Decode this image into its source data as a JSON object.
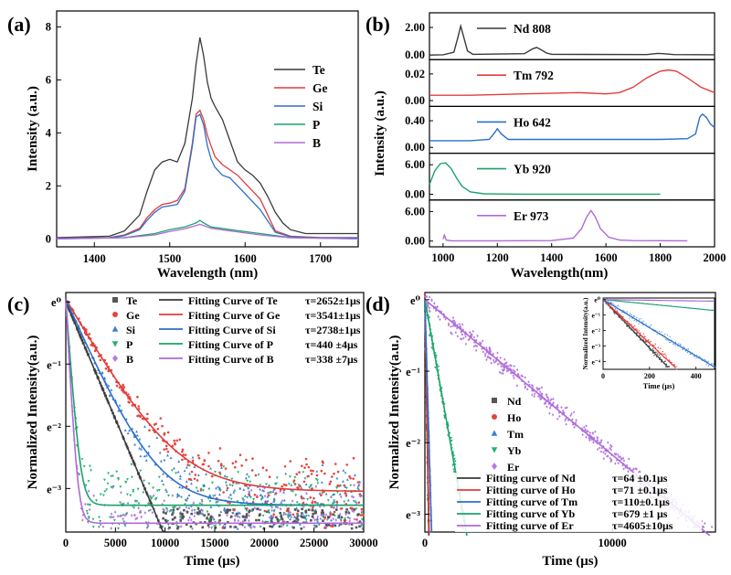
{
  "figure": {
    "panel_labels": [
      "(a)",
      "(b)",
      "(c)",
      "(d)"
    ]
  },
  "chart_data": [
    {
      "panel": "(a)",
      "type": "line",
      "xlabel": "Wavelength (nm)",
      "ylabel": "Intensity (a.u.)",
      "xlim": [
        1350,
        1750
      ],
      "ylim": [
        -0.3,
        8.6
      ],
      "xticks": [
        1400,
        1500,
        1600,
        1700
      ],
      "xtick_labels": [
        "1400",
        "1500",
        "1600",
        "1700"
      ],
      "yticks": [
        0,
        2,
        4,
        6,
        8
      ],
      "ytick_labels": [
        "0",
        "2",
        "4",
        "6",
        "8"
      ],
      "legend_position": "right",
      "series": [
        {
          "name": "Te",
          "color": "#3a3a3a",
          "x": [
            1350,
            1420,
            1440,
            1460,
            1470,
            1480,
            1490,
            1500,
            1510,
            1520,
            1530,
            1535,
            1540,
            1545,
            1550,
            1555,
            1560,
            1570,
            1580,
            1590,
            1600,
            1610,
            1620,
            1630,
            1640,
            1650,
            1660,
            1680,
            1700,
            1750
          ],
          "y": [
            0.05,
            0.1,
            0.3,
            0.9,
            1.8,
            2.6,
            2.9,
            3.0,
            2.9,
            3.6,
            5.3,
            6.6,
            7.6,
            6.9,
            5.9,
            5.3,
            5.0,
            4.5,
            3.7,
            2.9,
            2.6,
            2.4,
            2.1,
            1.6,
            1.0,
            0.6,
            0.35,
            0.2,
            0.2,
            0.2
          ]
        },
        {
          "name": "Ge",
          "color": "#e03c3c",
          "x": [
            1350,
            1420,
            1440,
            1460,
            1470,
            1480,
            1490,
            1500,
            1510,
            1520,
            1530,
            1535,
            1540,
            1545,
            1550,
            1555,
            1560,
            1570,
            1580,
            1590,
            1600,
            1610,
            1620,
            1630,
            1640,
            1660,
            1700,
            1750
          ],
          "y": [
            0.03,
            0.05,
            0.15,
            0.4,
            0.8,
            1.1,
            1.3,
            1.35,
            1.45,
            1.9,
            3.6,
            4.7,
            4.85,
            4.5,
            3.9,
            3.5,
            3.1,
            2.8,
            2.6,
            2.4,
            2.1,
            1.8,
            1.5,
            0.9,
            0.3,
            0.1,
            0.05,
            0.05
          ]
        },
        {
          "name": "Si",
          "color": "#2c6fc9",
          "x": [
            1350,
            1420,
            1440,
            1460,
            1470,
            1480,
            1490,
            1500,
            1510,
            1520,
            1530,
            1535,
            1540,
            1545,
            1550,
            1555,
            1560,
            1570,
            1580,
            1590,
            1600,
            1610,
            1620,
            1640,
            1660,
            1700,
            1750
          ],
          "y": [
            0.02,
            0.04,
            0.12,
            0.35,
            0.7,
            1.0,
            1.2,
            1.25,
            1.3,
            1.8,
            3.5,
            4.6,
            4.7,
            4.3,
            3.5,
            3.0,
            2.7,
            2.4,
            2.3,
            2.0,
            1.7,
            1.4,
            1.1,
            0.25,
            0.08,
            0.04,
            0.04
          ]
        },
        {
          "name": "P",
          "color": "#1aa36a",
          "x": [
            1350,
            1440,
            1480,
            1500,
            1520,
            1535,
            1540,
            1545,
            1555,
            1580,
            1620,
            1660,
            1750
          ],
          "y": [
            0.0,
            0.05,
            0.2,
            0.35,
            0.45,
            0.6,
            0.7,
            0.6,
            0.45,
            0.35,
            0.2,
            0.05,
            0.0
          ]
        },
        {
          "name": "B",
          "color": "#b06ad8",
          "x": [
            1350,
            1440,
            1480,
            1500,
            1520,
            1535,
            1540,
            1545,
            1555,
            1580,
            1620,
            1660,
            1750
          ],
          "y": [
            0.0,
            0.04,
            0.15,
            0.28,
            0.38,
            0.5,
            0.55,
            0.5,
            0.4,
            0.3,
            0.15,
            0.04,
            0.0
          ]
        }
      ]
    },
    {
      "panel": "(b)",
      "type": "line",
      "xlabel": "Wavelength(nm)",
      "ylabel": "Intensity (a.u.)",
      "xlim": [
        950,
        2000
      ],
      "xticks": [
        1000,
        1200,
        1400,
        1600,
        1800,
        2000
      ],
      "xtick_labels": [
        "1000",
        "1200",
        "1400",
        "1600",
        "1800",
        "2000"
      ],
      "subplots": [
        {
          "name": "Nd 808",
          "color": "#3a3a3a",
          "ylim": [
            -0.2,
            2.8
          ],
          "yticks": [
            0,
            2
          ],
          "ytick_labels": [
            "0.00",
            "2.00"
          ],
          "x": [
            950,
            1000,
            1040,
            1055,
            1065,
            1075,
            1090,
            1110,
            1300,
            1330,
            1345,
            1360,
            1380,
            1400,
            1750,
            1790,
            1810,
            1850,
            2000
          ],
          "y": [
            0,
            0.02,
            0.2,
            1.3,
            2.1,
            1.4,
            0.3,
            0.05,
            0.1,
            0.45,
            0.55,
            0.4,
            0.15,
            0.05,
            0.03,
            0.12,
            0.1,
            0.03,
            0.02
          ]
        },
        {
          "name": "Tm 792",
          "color": "#e03c3c",
          "ylim": [
            -0.003,
            0.028
          ],
          "yticks": [
            0,
            0.02
          ],
          "ytick_labels": [
            "0.00",
            "0.02"
          ],
          "x": [
            950,
            1100,
            1300,
            1500,
            1600,
            1650,
            1700,
            1750,
            1800,
            1830,
            1860,
            1900,
            1950,
            2000
          ],
          "y": [
            0.004,
            0.004,
            0.005,
            0.006,
            0.005,
            0.006,
            0.01,
            0.017,
            0.022,
            0.023,
            0.022,
            0.017,
            0.01,
            0.006
          ]
        },
        {
          "name": "Ho 642",
          "color": "#2c6fc9",
          "ylim": [
            -0.06,
            0.56
          ],
          "yticks": [
            0,
            0.4
          ],
          "ytick_labels": [
            "0.00",
            "0.40"
          ],
          "x": [
            950,
            1100,
            1170,
            1190,
            1200,
            1215,
            1240,
            1400,
            1600,
            1800,
            1900,
            1930,
            1945,
            1955,
            1970,
            1985,
            2000
          ],
          "y": [
            0.1,
            0.1,
            0.12,
            0.22,
            0.28,
            0.2,
            0.12,
            0.12,
            0.12,
            0.12,
            0.13,
            0.2,
            0.45,
            0.5,
            0.45,
            0.35,
            0.3
          ]
        },
        {
          "name": "Yb 920",
          "color": "#1aa36a",
          "ylim": [
            -0.8,
            7.6
          ],
          "yticks": [
            0,
            6
          ],
          "ytick_labels": [
            "0.00",
            "6.00"
          ],
          "x": [
            950,
            970,
            990,
            1010,
            1030,
            1050,
            1070,
            1100,
            1150,
            1200,
            1300,
            1500,
            1800
          ],
          "y": [
            2.0,
            4.8,
            6.2,
            6.4,
            5.2,
            3.3,
            1.6,
            0.5,
            0.1,
            0.05,
            0.02,
            0.02,
            0.02
          ]
        },
        {
          "name": "Er 973",
          "color": "#b06ad8",
          "ylim": [
            -0.8,
            7.6
          ],
          "yticks": [
            0,
            6
          ],
          "ytick_labels": [
            "0.00",
            "6.00"
          ],
          "x": [
            1000,
            1005,
            1012,
            1030,
            1200,
            1400,
            1480,
            1510,
            1530,
            1545,
            1560,
            1580,
            1610,
            1650,
            1700,
            1900
          ],
          "y": [
            0.4,
            1.2,
            0.2,
            0.05,
            0.05,
            0.1,
            0.6,
            2.5,
            5.0,
            6.2,
            5.0,
            2.5,
            0.8,
            0.2,
            0.1,
            0.05
          ]
        }
      ]
    },
    {
      "panel": "(c)",
      "type": "scatter",
      "xlabel": "Time (μs)",
      "ylabel": "Normalized Intensity(a.u.)",
      "xlim": [
        0,
        30000
      ],
      "ylim_log_e": [
        -3.7,
        0.15
      ],
      "xticks": [
        0,
        5000,
        10000,
        15000,
        20000,
        25000,
        30000
      ],
      "xtick_labels": [
        "0",
        "5000",
        "10000",
        "15000",
        "20000",
        "25000",
        "30000"
      ],
      "yticks_e": [
        0,
        -1,
        -2,
        -3
      ],
      "ytick_labels": [
        "e⁰",
        "e⁻¹",
        "e⁻²",
        "e⁻³"
      ],
      "series": [
        {
          "name": "Te",
          "marker": "square",
          "color": "#555555",
          "tau": 2652,
          "floor": 0.0
        },
        {
          "name": "Ge",
          "marker": "circle",
          "color": "#e8443a",
          "tau": 3541,
          "floor": 0.05
        },
        {
          "name": "Si",
          "marker": "triangle",
          "color": "#3b7fd6",
          "tau": 2738,
          "floor": 0.04
        },
        {
          "name": "P",
          "marker": "triangle-down",
          "color": "#26b070",
          "tau": 440,
          "floor": 0.04
        },
        {
          "name": "B",
          "marker": "diamond",
          "color": "#b47be0",
          "tau": 338,
          "floor": 0.03
        }
      ],
      "fit_legend": [
        {
          "name": "Fitting Curve of Te",
          "value": "τ=2652±1μs",
          "color": "#3a3a3a"
        },
        {
          "name": "Fitting Curve of Ge",
          "value": "τ=3541±1μs",
          "color": "#e03c3c"
        },
        {
          "name": "Fitting Curve of Si",
          "value": "τ=2738±1μs",
          "color": "#2c6fc9"
        },
        {
          "name": "Fitting Curve of P",
          "value": "τ=440  ±4μs",
          "color": "#1aa36a"
        },
        {
          "name": "Fitting Curve of B",
          "value": "τ=338  ±7μs",
          "color": "#b06ad8"
        }
      ]
    },
    {
      "panel": "(d)",
      "type": "scatter",
      "xlabel": "Time (μs)",
      "ylabel": "Normalized Intensity(a.u.)",
      "xlim": [
        0,
        15500
      ],
      "ylim_log_e": [
        -3.25,
        0.1
      ],
      "xticks": [
        0,
        10000
      ],
      "xtick_labels": [
        "0",
        "10000"
      ],
      "yticks_e": [
        0,
        -1,
        -2,
        -3
      ],
      "ytick_labels": [
        "e⁰",
        "e⁻¹",
        "e⁻²",
        "e⁻³"
      ],
      "series": [
        {
          "name": "Nd",
          "marker": "square",
          "color": "#555555",
          "tau": 64
        },
        {
          "name": "Ho",
          "marker": "circle",
          "color": "#e8443a",
          "tau": 71
        },
        {
          "name": "Tm",
          "marker": "triangle",
          "color": "#3b7fd6",
          "tau": 110
        },
        {
          "name": "Yb",
          "marker": "triangle-down",
          "color": "#26b070",
          "tau": 679
        },
        {
          "name": "Er",
          "marker": "diamond",
          "color": "#b47be0",
          "tau": 4605
        }
      ],
      "fit_legend": [
        {
          "name": "Fitting curve of Nd",
          "value": "τ=64  ±0.1μs",
          "color": "#3a3a3a"
        },
        {
          "name": "Fitting curve of Ho",
          "value": "τ=71  ±0.1μs",
          "color": "#e03c3c"
        },
        {
          "name": "Fitting curve of Tm",
          "value": "τ=110±0.1μs",
          "color": "#2c6fc9"
        },
        {
          "name": "Fitting curve of Yb",
          "value": "τ=679 ±1  μs",
          "color": "#1aa36a"
        },
        {
          "name": "Fitting curve of Er",
          "value": "τ=4605±10μs",
          "color": "#b06ad8"
        }
      ],
      "inset": {
        "xlabel": "Time (μs)",
        "ylabel": "Normalized Intensity(a.u.)",
        "xlim": [
          0,
          480
        ],
        "ylim_log_e": [
          -4.5,
          0.1
        ],
        "xticks": [
          0,
          200,
          400
        ],
        "xtick_labels": [
          "0",
          "200",
          "400"
        ],
        "yticks_e": [
          0,
          -1,
          -2,
          -3,
          -4
        ],
        "ytick_labels": [
          "e⁰",
          "e⁻¹",
          "e⁻²",
          "e⁻³",
          "e⁻⁴"
        ]
      }
    }
  ]
}
